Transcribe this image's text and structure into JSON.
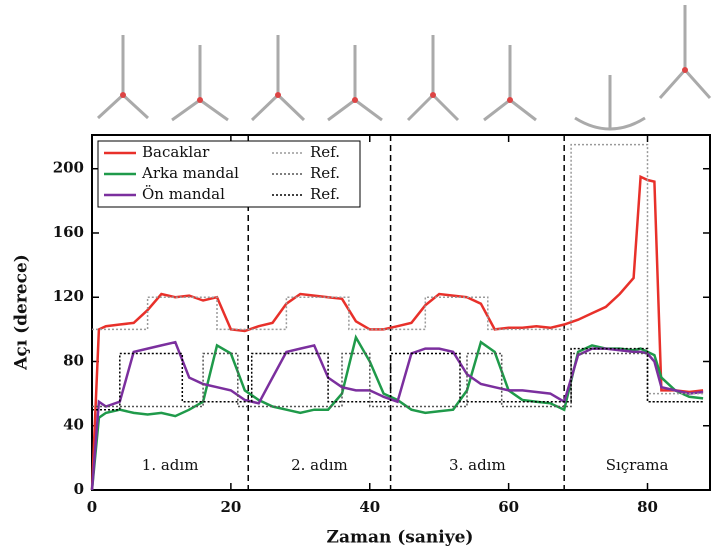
{
  "chart_data": {
    "type": "line",
    "xlabel": "Zaman (saniye)",
    "ylabel": "Açı (derece)",
    "xlim": [
      0,
      89
    ],
    "ylim": [
      0,
      221
    ],
    "xticks": [
      0,
      20,
      40,
      60,
      80
    ],
    "yticks": [
      0,
      40,
      80,
      120,
      160,
      200
    ],
    "legend": "upper left",
    "dividers": [
      22.5,
      43,
      68
    ],
    "annotations": [
      "1. adım",
      "2. adım",
      "3. adım",
      "Sıçrama"
    ],
    "series": [
      {
        "name": "Bacaklar",
        "color": "#e8302a",
        "style": "solid",
        "x": [
          0,
          1,
          2,
          4,
          6,
          8,
          10,
          12,
          14,
          16,
          18,
          20,
          22,
          24,
          26,
          28,
          30,
          32,
          34,
          36,
          38,
          40,
          42,
          44,
          46,
          48,
          50,
          52,
          54,
          56,
          58,
          60,
          62,
          64,
          66,
          68,
          70,
          72,
          74,
          76,
          78,
          79,
          80,
          81,
          82,
          84,
          86,
          88
        ],
        "values": [
          0,
          100,
          102,
          103,
          104,
          112,
          122,
          120,
          121,
          118,
          120,
          100,
          99,
          102,
          104,
          116,
          122,
          121,
          120,
          119,
          105,
          100,
          100,
          102,
          104,
          115,
          122,
          121,
          120,
          116,
          100,
          101,
          101,
          102,
          101,
          103,
          106,
          110,
          114,
          122,
          132,
          195,
          193,
          192,
          62,
          62,
          61,
          62
        ]
      },
      {
        "name": "Arka mandal",
        "color": "#1f9a4a",
        "style": "solid",
        "x": [
          0,
          1,
          2,
          4,
          6,
          8,
          10,
          12,
          14,
          16,
          18,
          20,
          22,
          24,
          26,
          28,
          30,
          32,
          34,
          36,
          38,
          40,
          42,
          44,
          46,
          48,
          50,
          52,
          54,
          56,
          58,
          60,
          62,
          64,
          66,
          68,
          70,
          72,
          74,
          76,
          78,
          79,
          80,
          81,
          82,
          84,
          86,
          88
        ],
        "values": [
          0,
          45,
          48,
          50,
          48,
          47,
          48,
          46,
          50,
          55,
          90,
          85,
          62,
          56,
          52,
          50,
          48,
          50,
          50,
          60,
          95,
          80,
          60,
          56,
          50,
          48,
          49,
          50,
          62,
          92,
          86,
          62,
          56,
          55,
          54,
          50,
          86,
          90,
          88,
          88,
          87,
          88,
          86,
          84,
          70,
          62,
          58,
          57
        ]
      },
      {
        "name": "Ön mandal",
        "color": "#7b2f9e",
        "style": "solid",
        "x": [
          0,
          1,
          2,
          4,
          6,
          8,
          10,
          12,
          14,
          16,
          18,
          20,
          22,
          24,
          26,
          28,
          30,
          32,
          34,
          36,
          38,
          40,
          42,
          44,
          46,
          48,
          50,
          52,
          54,
          56,
          58,
          60,
          62,
          64,
          66,
          68,
          70,
          72,
          74,
          76,
          78,
          79,
          80,
          81,
          82,
          84,
          86,
          88
        ],
        "values": [
          0,
          55,
          52,
          55,
          86,
          88,
          90,
          92,
          70,
          66,
          64,
          62,
          56,
          54,
          70,
          86,
          88,
          90,
          70,
          64,
          62,
          62,
          58,
          55,
          85,
          88,
          88,
          86,
          72,
          66,
          64,
          62,
          62,
          61,
          60,
          55,
          84,
          88,
          88,
          87,
          86,
          86,
          85,
          80,
          64,
          62,
          60,
          61
        ]
      },
      {
        "name": "Ref.",
        "color": "#9a9a9a",
        "style": "dotted",
        "x": [
          0,
          8,
          8,
          18,
          18,
          28,
          28,
          37,
          37,
          48,
          48,
          57,
          57,
          69,
          69,
          80,
          80,
          88
        ],
        "values": [
          100,
          100,
          120,
          120,
          100,
          100,
          120,
          120,
          100,
          100,
          120,
          120,
          100,
          100,
          215,
          215,
          60,
          60
        ]
      },
      {
        "name": "Ref.",
        "color": "#555555",
        "style": "dotted",
        "x": [
          0,
          16,
          16,
          21,
          21,
          36,
          36,
          40,
          40,
          54,
          54,
          59,
          59,
          69,
          69,
          80,
          80,
          88
        ],
        "values": [
          52,
          52,
          85,
          85,
          52,
          52,
          85,
          85,
          52,
          52,
          85,
          85,
          52,
          52,
          85,
          85,
          55,
          55
        ]
      },
      {
        "name": "Ref.",
        "color": "#000000",
        "style": "dotted",
        "x": [
          0,
          4,
          4,
          13,
          13,
          23,
          23,
          34,
          34,
          43,
          43,
          53,
          53,
          69,
          69,
          80,
          80,
          88
        ],
        "values": [
          50,
          50,
          85,
          85,
          55,
          55,
          85,
          85,
          55,
          55,
          85,
          85,
          55,
          55,
          88,
          88,
          55,
          55
        ]
      }
    ]
  }
}
